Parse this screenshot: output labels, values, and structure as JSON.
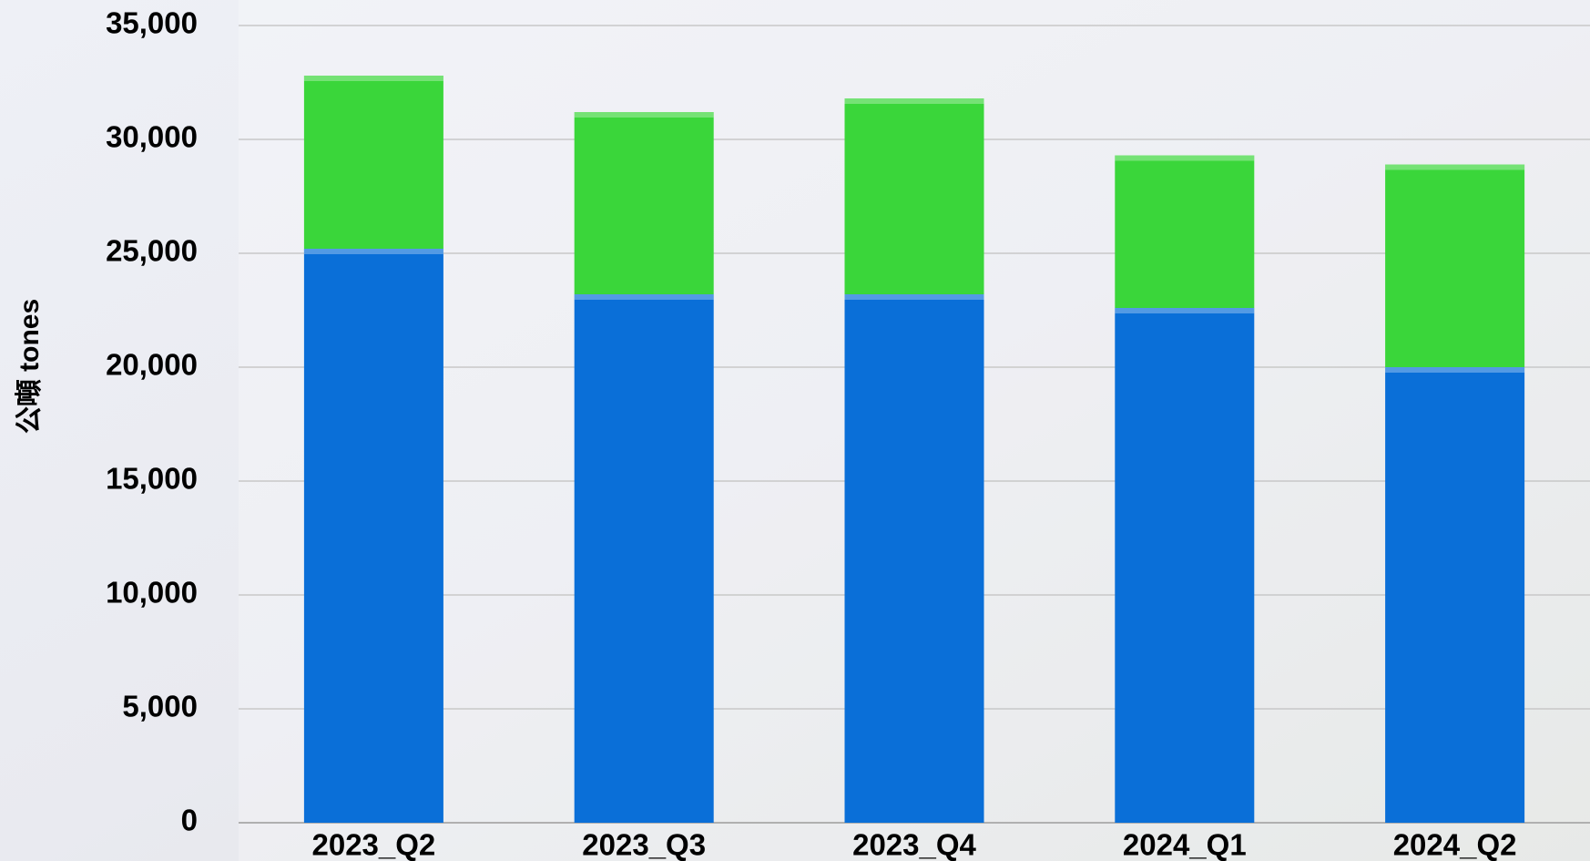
{
  "chart_data": {
    "type": "stacked-bar",
    "y_label": "公噸 tones",
    "categories": [
      "2023_Q2",
      "2023_Q3",
      "2023_Q4",
      "2024_Q1",
      "2024_Q2"
    ],
    "series": [
      {
        "color": "#0a6fd8",
        "values": [
          25200,
          23200,
          23200,
          22600,
          20000
        ]
      },
      {
        "color": "#3ad63a",
        "values": [
          7600,
          8000,
          8600,
          6700,
          8900
        ]
      }
    ],
    "ylim": [
      0,
      35000
    ],
    "yticks": [
      0,
      {
        "value": 5000,
        "label": "5,000"
      },
      {
        "value": 10000,
        "label": "10,000"
      },
      {
        "value": 15000,
        "label": "15,000"
      },
      {
        "value": 20000,
        "label": "20,000"
      },
      {
        "value": 25000,
        "label": "25,000"
      },
      {
        "value": 30000,
        "label": "30,000"
      },
      {
        "value": 35000,
        "label": "35,000"
      }
    ],
    "grid": true
  }
}
